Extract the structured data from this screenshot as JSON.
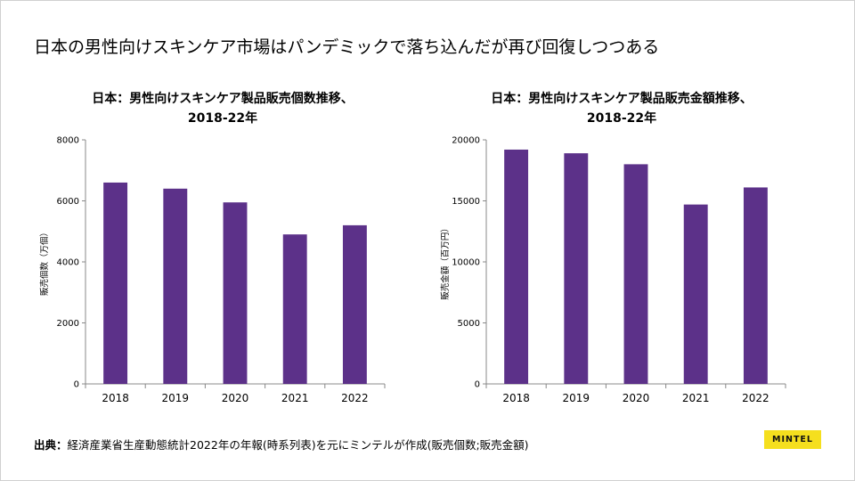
{
  "slide": {
    "title": "日本の男性向けスキンケア市場はパンデミックで落ち込んだが再び回復しつつある",
    "source_label": "出典：",
    "source_text": "経済産業省生産動態統計2022年の年報(時系列表)を元にミンテルが作成(販売個数;販売金額)",
    "logo_text": "MINTEL"
  },
  "colors": {
    "bar": "#5c3189",
    "axis": "#888888",
    "text": "#000000"
  },
  "chart_data": [
    {
      "type": "bar",
      "title_line1": "日本：男性向けスキンケア製品販売個数推移、",
      "title_line2": "2018-22年",
      "xlabel": "",
      "ylabel": "販売個数（万個）",
      "categories": [
        "2018",
        "2019",
        "2020",
        "2021",
        "2022"
      ],
      "values": [
        6600,
        6400,
        5950,
        4900,
        5200
      ],
      "ylim": [
        0,
        8000
      ],
      "yticks": [
        "0",
        "2000",
        "4000",
        "6000",
        "8000"
      ],
      "ytick_values": [
        0,
        2000,
        4000,
        6000,
        8000
      ],
      "grid": false
    },
    {
      "type": "bar",
      "title_line1": "日本：男性向けスキンケア製品販売金額推移、",
      "title_line2": "2018-22年",
      "xlabel": "",
      "ylabel": "販売金額（百万円）",
      "categories": [
        "2018",
        "2019",
        "2020",
        "2021",
        "2022"
      ],
      "values": [
        19200,
        18900,
        18000,
        14700,
        16100
      ],
      "ylim": [
        0,
        20000
      ],
      "yticks": [
        "0",
        "5000",
        "10000",
        "15000",
        "20000"
      ],
      "ytick_values": [
        0,
        5000,
        10000,
        15000,
        20000
      ],
      "grid": false
    }
  ]
}
